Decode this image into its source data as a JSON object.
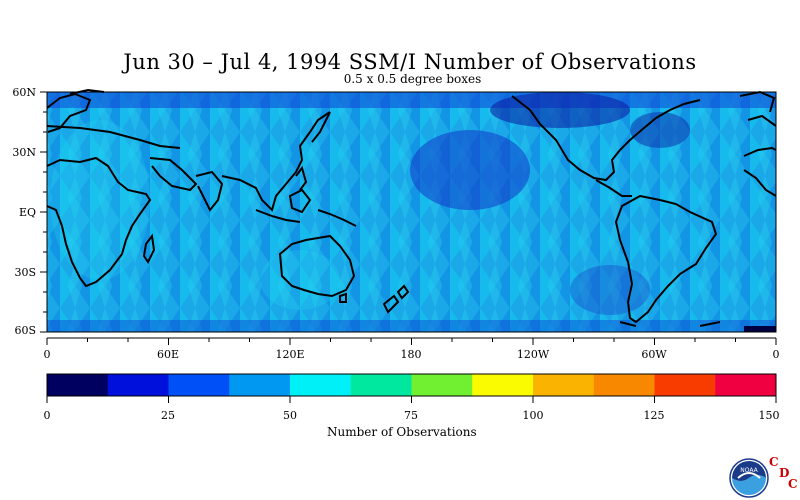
{
  "title": "Jun 30 – Jul 4, 1994 SSM/I Number of Observations",
  "subtitle": "0.5 x 0.5 degree boxes",
  "map": {
    "lat_labels": [
      "60N",
      "30N",
      "EQ",
      "30S",
      "60S"
    ],
    "lon_labels": [
      "0",
      "60E",
      "120E",
      "180",
      "120W",
      "60W",
      "0"
    ]
  },
  "colorbar": {
    "title": "Number of Observations",
    "tick_labels": [
      "0",
      "25",
      "50",
      "75",
      "100",
      "125",
      "150"
    ],
    "colors": [
      "#000060",
      "#0010dc",
      "#0050f8",
      "#0098f0",
      "#00f0f8",
      "#00e8a0",
      "#70f030",
      "#fafa00",
      "#fab400",
      "#f88800",
      "#f83c00",
      "#f00040"
    ]
  },
  "logo": {
    "name": "noaa-logo",
    "text": "NOAA",
    "cdc_letters": [
      "C",
      "D",
      "C"
    ]
  }
}
